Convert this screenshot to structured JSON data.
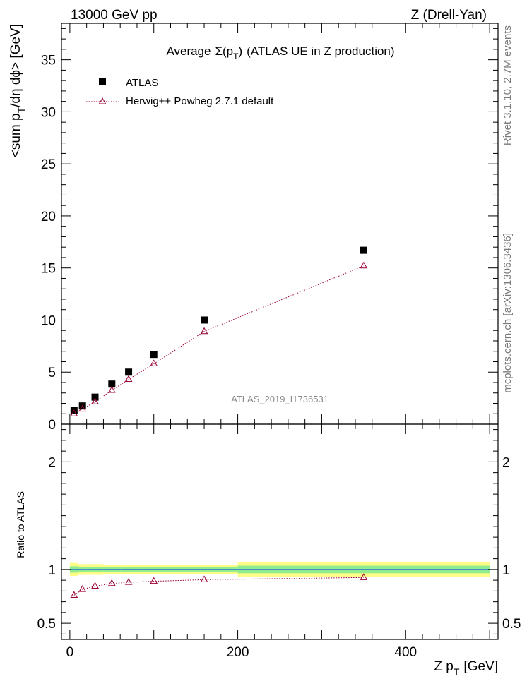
{
  "header": {
    "energy_label": "13000 GeV pp",
    "process_label": "Z (Drell-Yan)"
  },
  "side_text": {
    "rivet": "Rivet 3.1.10,  2.7M events",
    "mcplots": "mcplots.cern.ch [arXiv:1306.3436]"
  },
  "chart_data": [
    {
      "type": "scatter",
      "panel": "main",
      "title_prefix": "Average",
      "title_symbol": "Σ(p",
      "title_sub": "T",
      "title_close": ")",
      "title_suffix": "(ATLAS UE in Z production)",
      "ylabel_main": "<sum p",
      "ylabel_sub": "T",
      "ylabel_rest": "/dη dϕ> [GeV]",
      "analysis_label": "ATLAS_2019_I1736531",
      "xlim": [
        -10,
        510
      ],
      "ylim": [
        0,
        38.5
      ],
      "yticks": [
        0,
        5,
        10,
        15,
        20,
        25,
        30,
        35
      ],
      "yticklabels": [
        "0",
        "5",
        "10",
        "15",
        "20",
        "25",
        "30",
        "35"
      ],
      "legend_position": "top-left",
      "series": [
        {
          "name": "ATLAS",
          "marker": "square",
          "color": "#000000",
          "x": [
            5,
            15,
            30,
            50,
            70,
            100,
            160,
            350
          ],
          "y": [
            1.3,
            1.75,
            2.6,
            3.85,
            5.0,
            6.7,
            10.0,
            16.7
          ]
        },
        {
          "name": "Herwig++ Powheg 2.7.1 default",
          "marker": "open-triangle",
          "line": "dotted",
          "color": "#990033",
          "x": [
            5,
            15,
            30,
            50,
            70,
            100,
            160,
            350
          ],
          "y": [
            1.0,
            1.45,
            2.15,
            3.25,
            4.3,
            5.8,
            8.9,
            15.2
          ]
        }
      ]
    },
    {
      "type": "scatter",
      "panel": "ratio",
      "ylabel": "Ratio to ATLAS",
      "xlabel_main": "Z p",
      "xlabel_sub": "T",
      "xlabel_rest": "[GeV]",
      "xlim": [
        -10,
        510
      ],
      "ylim": [
        0.35,
        2.35
      ],
      "xticks": [
        0,
        200,
        400
      ],
      "xticklabels": [
        "0",
        "200",
        "400"
      ],
      "yticks": [
        0.5,
        1,
        2
      ],
      "yticklabels": [
        "0.5",
        "1",
        "2"
      ],
      "bands": [
        {
          "x0": 0,
          "x1": 10,
          "yellow": 0.06,
          "green": 0.03
        },
        {
          "x0": 10,
          "x1": 20,
          "yellow": 0.05,
          "green": 0.025
        },
        {
          "x0": 20,
          "x1": 40,
          "yellow": 0.05,
          "green": 0.02
        },
        {
          "x0": 40,
          "x1": 60,
          "yellow": 0.045,
          "green": 0.02
        },
        {
          "x0": 60,
          "x1": 80,
          "yellow": 0.045,
          "green": 0.02
        },
        {
          "x0": 80,
          "x1": 120,
          "yellow": 0.04,
          "green": 0.02
        },
        {
          "x0": 120,
          "x1": 200,
          "yellow": 0.045,
          "green": 0.02
        },
        {
          "x0": 200,
          "x1": 500,
          "yellow": 0.07,
          "green": 0.035
        }
      ],
      "series": [
        {
          "name": "Herwig++ Powheg 2.7.1 default",
          "marker": "open-triangle",
          "line": "dotted",
          "color": "#990033",
          "x": [
            5,
            15,
            30,
            50,
            70,
            100,
            160,
            350
          ],
          "y": [
            0.76,
            0.815,
            0.845,
            0.87,
            0.88,
            0.89,
            0.905,
            0.925
          ]
        }
      ]
    }
  ]
}
